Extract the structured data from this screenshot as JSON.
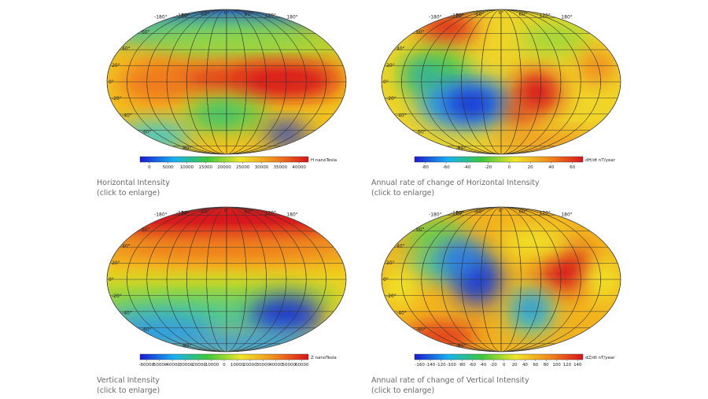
{
  "graticule": {
    "longitudes": [
      "-180°",
      "-120°",
      "-60°",
      "0°",
      "60°",
      "120°",
      "180°"
    ],
    "latitudes": [
      "80°",
      "60°",
      "40°",
      "20°",
      "0°",
      "-20°",
      "-40°",
      "-60°",
      "-80°"
    ]
  },
  "panels": [
    {
      "caption": "Horizontal Intensity",
      "link": "(click to enlarge)",
      "map": {
        "units": "H nanoTesla",
        "colorbar_ticks": [
          0,
          5000,
          10000,
          15000,
          20000,
          25000,
          30000,
          35000,
          40000
        ]
      }
    },
    {
      "caption": "Annual rate of change of Horizontal Intensity",
      "link": "(click to enlarge)",
      "map": {
        "units": "dH/dt nT/year",
        "colorbar_ticks": [
          -80,
          -60,
          -40,
          -20,
          0,
          20,
          40,
          60
        ]
      }
    },
    {
      "caption": "Vertical Intensity",
      "link": "(click to enlarge)",
      "map": {
        "units": "Z nanoTesla",
        "colorbar_ticks": [
          -60000,
          -50000,
          -40000,
          -30000,
          -20000,
          -10000,
          0,
          10000,
          20000,
          30000,
          40000,
          50000,
          60000
        ]
      }
    },
    {
      "caption": "Annual rate of change of Vertical Intensity",
      "link": "(click to enlarge)",
      "map": {
        "units": "dZ/dt nT/year",
        "colorbar_ticks": [
          -160,
          -140,
          -120,
          -100,
          -80,
          -60,
          -40,
          -20,
          0,
          20,
          40,
          60,
          80,
          100,
          120,
          140
        ]
      }
    }
  ]
}
